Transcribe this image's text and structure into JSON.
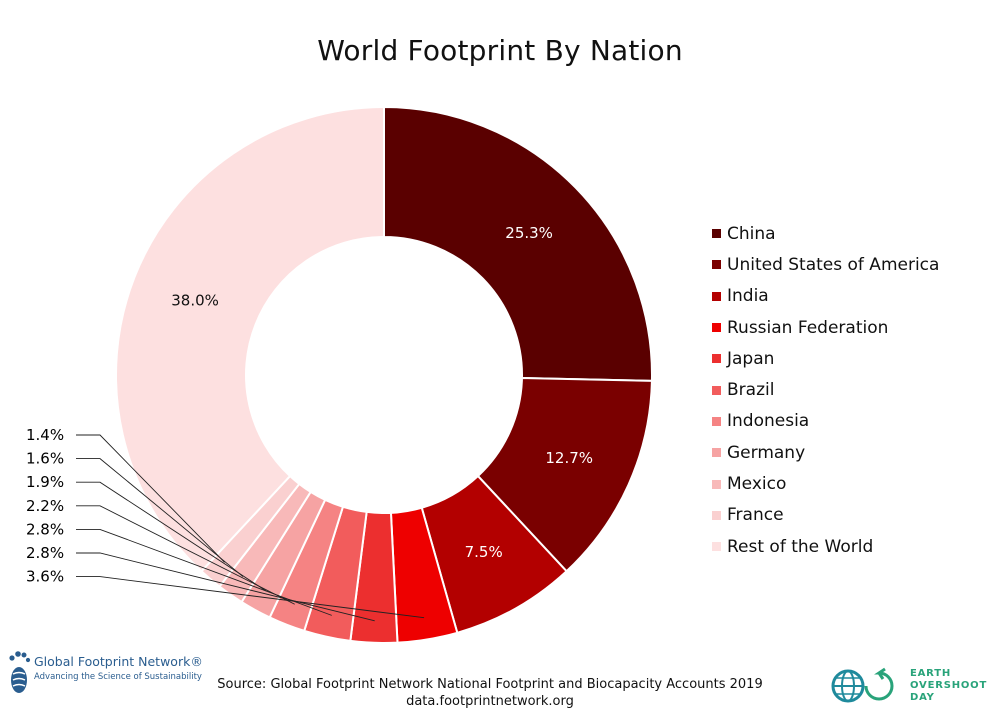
{
  "chart_data": {
    "type": "pie",
    "donut": true,
    "title": "World Footprint By Nation",
    "categories": [
      "China",
      "United States of America",
      "India",
      "Russian Federation",
      "Japan",
      "Brazil",
      "Indonesia",
      "Germany",
      "Mexico",
      "France",
      "Rest of the World"
    ],
    "values": [
      25.3,
      12.7,
      7.5,
      3.6,
      2.8,
      2.8,
      2.2,
      1.9,
      1.6,
      1.4,
      38.0
    ],
    "labels": [
      "25.3%",
      "12.7%",
      "7.5%",
      "3.6%",
      "2.8%",
      "2.8%",
      "2.2%",
      "1.9%",
      "1.6%",
      "1.4%",
      "38.0%"
    ],
    "colors": [
      "#5a0000",
      "#7a0000",
      "#b30000",
      "#ee0000",
      "#ec2f2f",
      "#f25c5c",
      "#f58383",
      "#f6a3a3",
      "#f8b9b9",
      "#fad0d0",
      "#fde0e0"
    ],
    "legend_position": "right"
  },
  "source": {
    "line1": "Source: Global Footprint Network National Footprint and Biocapacity Accounts 2019",
    "line2": "data.footprintnetwork.org"
  },
  "logos": {
    "gfn_name": "Global Footprint Network®",
    "gfn_tagline": "Advancing the Science of Sustainability",
    "eod_line1": "EARTH",
    "eod_line2": "OVERSHOOT",
    "eod_line3": "DAY",
    "gfn_color": "#2a5d8f",
    "eod_color": "#29a37a"
  }
}
